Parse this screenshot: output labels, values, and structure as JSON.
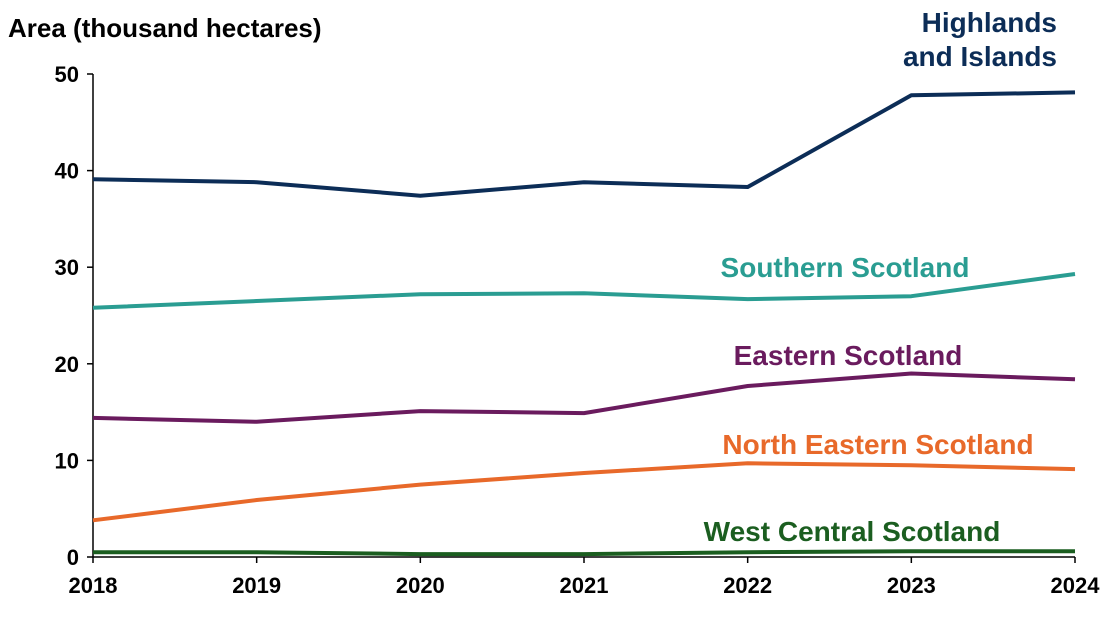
{
  "chart_data": {
    "type": "line",
    "title": "",
    "ylabel": "Area (thousand hectares)",
    "xlabel": "",
    "x": [
      2018,
      2019,
      2020,
      2021,
      2022,
      2023,
      2024
    ],
    "x_tick_labels": [
      "2018",
      "2019",
      "2020",
      "2021",
      "2022",
      "2023",
      "2024"
    ],
    "ylim": [
      0,
      50
    ],
    "y_ticks": [
      0,
      10,
      20,
      30,
      40,
      50
    ],
    "y_tick_labels": [
      "0",
      "10",
      "20",
      "30",
      "40",
      "50"
    ],
    "grid": false,
    "legend": "inline labels",
    "series": [
      {
        "name": "Highlands and Islands",
        "label_lines": [
          "Highlands",
          "and Islands"
        ],
        "color": "#0c2d57",
        "values": [
          39.1,
          38.8,
          37.4,
          38.8,
          38.3,
          47.8,
          48.1
        ]
      },
      {
        "name": "Southern Scotland",
        "label_lines": [
          "Southern Scotland"
        ],
        "color": "#2a9d92",
        "values": [
          25.8,
          26.5,
          27.2,
          27.3,
          26.7,
          27.0,
          29.3
        ]
      },
      {
        "name": "Eastern Scotland",
        "label_lines": [
          "Eastern Scotland"
        ],
        "color": "#6a1b5e",
        "values": [
          14.4,
          14.0,
          15.1,
          14.9,
          17.7,
          19.0,
          18.4
        ]
      },
      {
        "name": "North Eastern Scotland",
        "label_lines": [
          "North Eastern Scotland"
        ],
        "color": "#e8692a",
        "values": [
          3.8,
          5.9,
          7.5,
          8.7,
          9.7,
          9.5,
          9.1
        ]
      },
      {
        "name": "West Central Scotland",
        "label_lines": [
          "West Central Scotland"
        ],
        "color": "#1b5e20",
        "values": [
          0.5,
          0.5,
          0.3,
          0.3,
          0.5,
          0.6,
          0.6
        ]
      }
    ]
  }
}
